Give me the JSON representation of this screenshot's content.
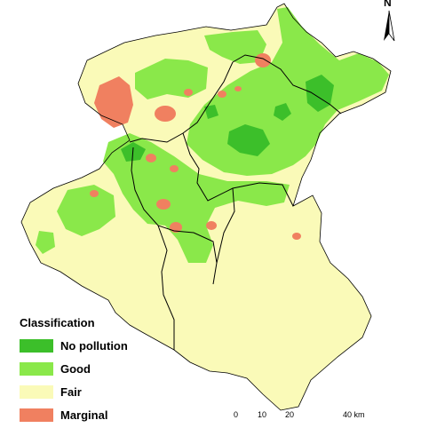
{
  "legend": {
    "title": "Classification",
    "items": [
      {
        "label": "No pollution",
        "color": "#3cbf2a"
      },
      {
        "label": "Good",
        "color": "#8ae84a"
      },
      {
        "label": "Fair",
        "color": "#fafab8"
      },
      {
        "label": "Marginal",
        "color": "#f08060"
      }
    ]
  },
  "scale": {
    "ticks": [
      "0",
      "10",
      "20",
      "40 km"
    ]
  },
  "north_arrow": {
    "label": "N"
  },
  "colors": {
    "no_pollution": "#3cbf2a",
    "good": "#8ae84a",
    "fair": "#fafab8",
    "marginal": "#f08060",
    "boundary": "#000000"
  }
}
